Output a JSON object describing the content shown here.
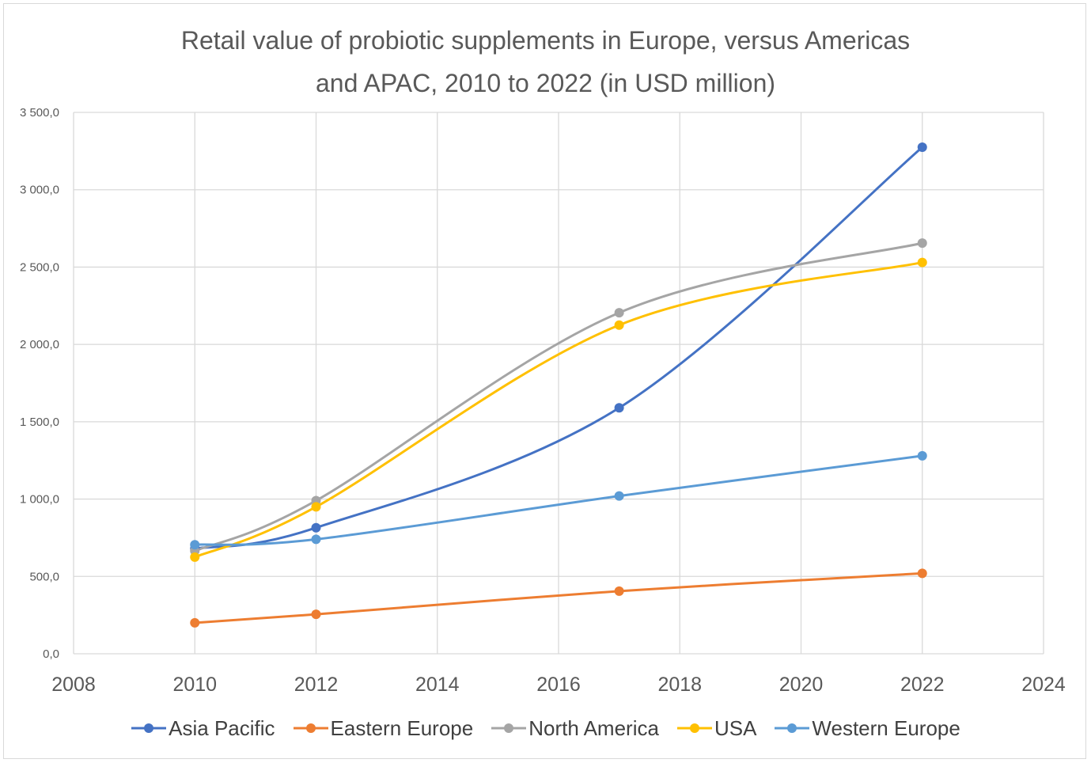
{
  "chart_data": {
    "type": "scatter",
    "title_lines": [
      "Retail value of probiotic supplements in Europe, versus Americas",
      "and APAC, 2010 to 2022 (in USD million)"
    ],
    "xlabel": "",
    "ylabel": "",
    "xlim": [
      2008,
      2024
    ],
    "ylim": [
      0,
      3500
    ],
    "x_ticks": [
      2008,
      2010,
      2012,
      2014,
      2016,
      2018,
      2020,
      2022,
      2024
    ],
    "x_tick_labels": [
      "2008",
      "2010",
      "2012",
      "2014",
      "2016",
      "2018",
      "2020",
      "2022",
      "2024"
    ],
    "y_ticks": [
      0,
      500,
      1000,
      1500,
      2000,
      2500,
      3000,
      3500
    ],
    "y_tick_labels": [
      "0,0",
      "500,0",
      "1 000,0",
      "1 500,0",
      "2 000,0",
      "2 500,0",
      "3 000,0",
      "3 500,0"
    ],
    "grid": true,
    "smooth_lines": true,
    "legend_position": "bottom",
    "series": [
      {
        "name": "Asia Pacific",
        "color": "#4472C4",
        "x": [
          2010,
          2012,
          2017,
          2022
        ],
        "y": [
          680,
          815,
          1590,
          3275
        ]
      },
      {
        "name": "Eastern Europe",
        "color": "#ED7D31",
        "x": [
          2010,
          2012,
          2017,
          2022
        ],
        "y": [
          200,
          255,
          405,
          520
        ]
      },
      {
        "name": "North America",
        "color": "#A5A5A5",
        "x": [
          2010,
          2012,
          2017,
          2022
        ],
        "y": [
          665,
          990,
          2205,
          2655
        ]
      },
      {
        "name": "USA",
        "color": "#FFC000",
        "x": [
          2010,
          2012,
          2017,
          2022
        ],
        "y": [
          625,
          950,
          2125,
          2530
        ]
      },
      {
        "name": "Western Europe",
        "color": "#5B9BD5",
        "x": [
          2010,
          2012,
          2017,
          2022
        ],
        "y": [
          705,
          740,
          1020,
          1280
        ]
      }
    ]
  }
}
